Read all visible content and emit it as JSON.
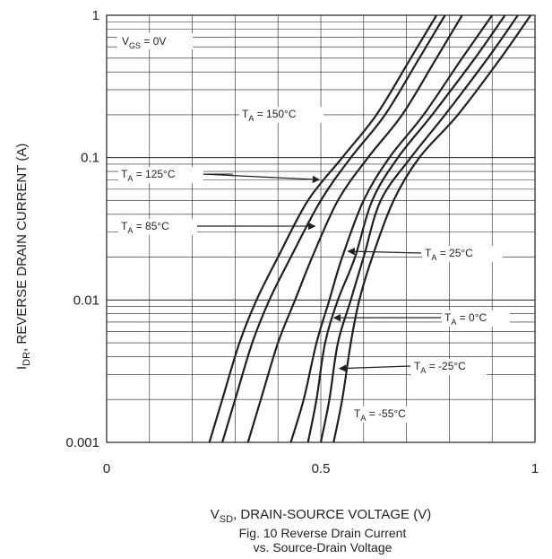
{
  "chart_data": {
    "type": "line",
    "title": "Fig. 10 Reverse Drain Current",
    "subtitle": "vs. Source-Drain Voltage",
    "xlabel_main": "V",
    "xlabel_sub": "SD",
    "xlabel_rest": ", DRAIN-SOURCE VOLTAGE (V)",
    "ylabel_main": "I",
    "ylabel_sub": "DR",
    "ylabel_rest": ", REVERSE DRAIN CURRENT (A)",
    "xscale": "linear",
    "yscale": "log",
    "xlim": [
      0,
      1
    ],
    "ylim": [
      0.001,
      1
    ],
    "grid": true,
    "x_tick_labels": [
      "0",
      "0.5",
      "1"
    ],
    "y_tick_labels": [
      "0.001",
      "0.01",
      "0.1",
      "1"
    ],
    "conditions": {
      "prefix": "V",
      "sub": "GS",
      "rest": " = 0V"
    },
    "series": [
      {
        "name": "150°C",
        "x": [
          0.24,
          0.27,
          0.31,
          0.35,
          0.4,
          0.47,
          0.55,
          0.63,
          0.71,
          0.77
        ],
        "y": [
          0.001,
          0.002,
          0.005,
          0.01,
          0.02,
          0.05,
          0.1,
          0.2,
          0.5,
          1.0
        ]
      },
      {
        "name": "125°C",
        "x": [
          0.27,
          0.3,
          0.34,
          0.38,
          0.43,
          0.5,
          0.57,
          0.65,
          0.73,
          0.79
        ],
        "y": [
          0.001,
          0.002,
          0.005,
          0.01,
          0.02,
          0.05,
          0.1,
          0.2,
          0.5,
          1.0
        ]
      },
      {
        "name": "85°C",
        "x": [
          0.33,
          0.36,
          0.4,
          0.44,
          0.48,
          0.54,
          0.61,
          0.69,
          0.77,
          0.83
        ],
        "y": [
          0.001,
          0.002,
          0.005,
          0.01,
          0.02,
          0.05,
          0.1,
          0.2,
          0.5,
          1.0
        ]
      },
      {
        "name": "25°C",
        "x": [
          0.43,
          0.46,
          0.49,
          0.52,
          0.55,
          0.6,
          0.66,
          0.74,
          0.83,
          0.9
        ],
        "y": [
          0.001,
          0.002,
          0.005,
          0.01,
          0.02,
          0.05,
          0.1,
          0.2,
          0.5,
          1.0
        ]
      },
      {
        "name": "0°C",
        "x": [
          0.47,
          0.49,
          0.51,
          0.54,
          0.58,
          0.62,
          0.68,
          0.76,
          0.86,
          0.93
        ],
        "y": [
          0.001,
          0.002,
          0.005,
          0.01,
          0.02,
          0.05,
          0.1,
          0.2,
          0.5,
          1.0
        ]
      },
      {
        "name": "-25°C",
        "x": [
          0.5,
          0.52,
          0.54,
          0.57,
          0.6,
          0.64,
          0.71,
          0.79,
          0.89,
          0.96
        ],
        "y": [
          0.001,
          0.002,
          0.005,
          0.01,
          0.02,
          0.05,
          0.1,
          0.2,
          0.5,
          1.0
        ]
      },
      {
        "name": "-55°C",
        "x": [
          0.53,
          0.55,
          0.57,
          0.59,
          0.62,
          0.67,
          0.73,
          0.82,
          0.92,
          0.99
        ],
        "y": [
          0.001,
          0.002,
          0.005,
          0.01,
          0.02,
          0.05,
          0.1,
          0.2,
          0.5,
          1.0
        ]
      }
    ],
    "labels": [
      {
        "text": "150°C",
        "label_x": 0.0,
        "arrow_to": null
      },
      {
        "text": "125°C",
        "arrow_to": [
          0.505,
          0.07
        ]
      },
      {
        "text": "85°C",
        "arrow_to": [
          0.495,
          0.033
        ]
      },
      {
        "text": "25°C",
        "arrow_to": [
          0.555,
          0.022
        ]
      },
      {
        "text": "0°C",
        "arrow_to": [
          0.522,
          0.0075
        ]
      },
      {
        "text": "-25°C",
        "arrow_to": [
          0.535,
          0.0033
        ]
      },
      {
        "text": "-55°C",
        "arrow_to": null
      }
    ],
    "label_prefix": "T",
    "label_sub": "A",
    "label_eq": " = "
  }
}
